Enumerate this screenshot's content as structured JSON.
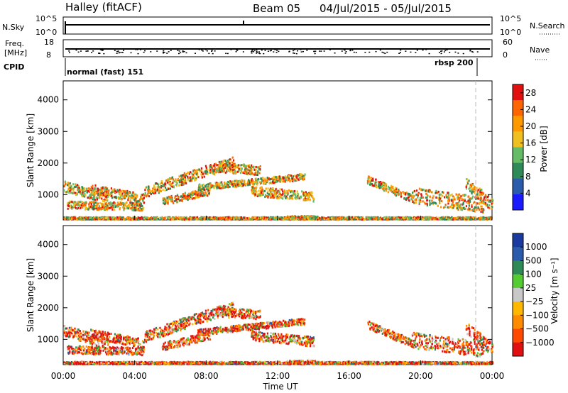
{
  "header": {
    "title": "Halley (fitACF)",
    "beam": "Beam 05",
    "dates": "04/Jul/2015 - 05/Jul/2015"
  },
  "top_panels": {
    "nsky_label": "N.Sky",
    "nsky_ticks": [
      "10^5",
      "10^0"
    ],
    "nsearch_label": "N.Search",
    "nsearch_ticks": [
      "10^5",
      "10^0"
    ],
    "freq_label_1": "Freq.",
    "freq_label_2": "[MHz]",
    "freq_ticks": [
      "18",
      "8"
    ],
    "nave_label": "Nave",
    "nave_ticks": [
      "60",
      "0"
    ],
    "cpid_label": "CPID",
    "cpid_segments": [
      "normal (fast) 151",
      "rbsp 200"
    ]
  },
  "colors": {
    "power_scale": [
      "#1a1aff",
      "#2a5cab",
      "#2e8b57",
      "#66bb66",
      "#f0c020",
      "#ff9900",
      "#ff6600",
      "#e01010"
    ],
    "velocity_scale": [
      "#e01010",
      "#ff4a00",
      "#ff8c00",
      "#ffb700",
      "#c8c8c8",
      "#55cc33",
      "#2e8b57",
      "#2a5cab",
      "#1a3aa0"
    ]
  },
  "chart_data": [
    {
      "type": "heatmap",
      "name_hint": "power",
      "ylabel": "Slant Range [km]",
      "xlabel": "Time UT",
      "xticks": [
        "00:00",
        "04:00",
        "08:00",
        "12:00",
        "16:00",
        "20:00",
        "00:00"
      ],
      "yticks": [
        "1000",
        "2000",
        "3000",
        "4000"
      ],
      "ylim": [
        200,
        4600
      ],
      "xlim_hours": [
        0,
        24
      ],
      "colorbar_label": "Power [dB]",
      "colorbar_ticks": [
        "4",
        "8",
        "12",
        "16",
        "20",
        "24",
        "28"
      ],
      "colorbar_range": [
        0,
        30
      ]
    },
    {
      "type": "heatmap",
      "name_hint": "velocity",
      "ylabel": "Slant Range [km]",
      "xlabel": "Time UT",
      "xticks": [
        "00:00",
        "04:00",
        "08:00",
        "12:00",
        "16:00",
        "20:00",
        "00:00"
      ],
      "yticks": [
        "1000",
        "2000",
        "3000",
        "4000"
      ],
      "ylim": [
        200,
        4600
      ],
      "xlim_hours": [
        0,
        24
      ],
      "colorbar_label": "Velocity [m s⁻¹]",
      "colorbar_ticks": [
        "1000",
        "500",
        "100",
        "25",
        "−25",
        "−100",
        "−500",
        "−1000"
      ]
    }
  ],
  "axis_title": "Time UT"
}
